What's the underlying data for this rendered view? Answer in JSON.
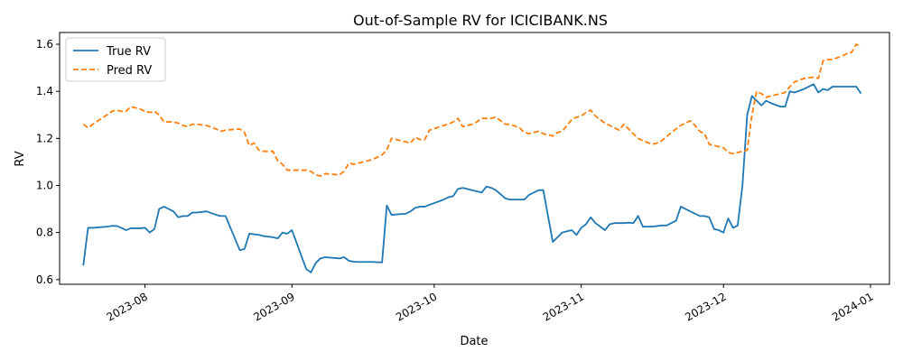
{
  "chart_data": {
    "type": "line",
    "title": "Out-of-Sample RV for ICICIBANK.NS",
    "xlabel": "Date",
    "ylabel": "RV",
    "x_axis_type": "date",
    "xlim": [
      "2023-07-14",
      "2024-01-05"
    ],
    "ylim": [
      0.58,
      1.65
    ],
    "x_ticks": [
      {
        "date": "2023-08-01",
        "label": "2023-08"
      },
      {
        "date": "2023-09-01",
        "label": "2023-09"
      },
      {
        "date": "2023-10-01",
        "label": "2023-10"
      },
      {
        "date": "2023-11-01",
        "label": "2023-11"
      },
      {
        "date": "2023-12-01",
        "label": "2023-12"
      },
      {
        "date": "2024-01-01",
        "label": "2024-01"
      }
    ],
    "y_ticks": [
      0.6,
      0.8,
      1.0,
      1.2,
      1.4,
      1.6
    ],
    "y_tick_labels": [
      "0.6",
      "0.8",
      "1.0",
      "1.2",
      "1.4",
      "1.6"
    ],
    "grid": false,
    "legend_position": "top-left",
    "series": [
      {
        "name": "True RV",
        "color": "#1f77b4",
        "style": "solid",
        "points": [
          [
            "2023-07-19",
            0.66
          ],
          [
            "2023-07-20",
            0.82
          ],
          [
            "2023-07-21",
            0.82
          ],
          [
            "2023-07-24",
            0.825
          ],
          [
            "2023-07-25",
            0.828
          ],
          [
            "2023-07-26",
            0.828
          ],
          [
            "2023-07-27",
            0.82
          ],
          [
            "2023-07-28",
            0.81
          ],
          [
            "2023-07-29",
            0.818
          ],
          [
            "2023-07-31",
            0.818
          ],
          [
            "2023-08-01",
            0.82
          ],
          [
            "2023-08-02",
            0.8
          ],
          [
            "2023-08-03",
            0.815
          ],
          [
            "2023-08-04",
            0.9
          ],
          [
            "2023-08-05",
            0.91
          ],
          [
            "2023-08-07",
            0.89
          ],
          [
            "2023-08-08",
            0.865
          ],
          [
            "2023-08-09",
            0.87
          ],
          [
            "2023-08-10",
            0.87
          ],
          [
            "2023-08-11",
            0.885
          ],
          [
            "2023-08-12",
            0.885
          ],
          [
            "2023-08-14",
            0.89
          ],
          [
            "2023-08-16",
            0.875
          ],
          [
            "2023-08-17",
            0.87
          ],
          [
            "2023-08-18",
            0.87
          ],
          [
            "2023-08-21",
            0.725
          ],
          [
            "2023-08-22",
            0.73
          ],
          [
            "2023-08-23",
            0.795
          ],
          [
            "2023-08-25",
            0.79
          ],
          [
            "2023-08-26",
            0.785
          ],
          [
            "2023-08-28",
            0.78
          ],
          [
            "2023-08-29",
            0.775
          ],
          [
            "2023-08-30",
            0.8
          ],
          [
            "2023-08-31",
            0.795
          ],
          [
            "2023-09-01",
            0.81
          ],
          [
            "2023-09-04",
            0.645
          ],
          [
            "2023-09-05",
            0.63
          ],
          [
            "2023-09-06",
            0.67
          ],
          [
            "2023-09-07",
            0.69
          ],
          [
            "2023-09-08",
            0.695
          ],
          [
            "2023-09-11",
            0.69
          ],
          [
            "2023-09-12",
            0.695
          ],
          [
            "2023-09-13",
            0.68
          ],
          [
            "2023-09-14",
            0.676
          ],
          [
            "2023-09-15",
            0.675
          ],
          [
            "2023-09-18",
            0.675
          ],
          [
            "2023-09-20",
            0.673
          ],
          [
            "2023-09-21",
            0.915
          ],
          [
            "2023-09-22",
            0.875
          ],
          [
            "2023-09-25",
            0.88
          ],
          [
            "2023-09-26",
            0.89
          ],
          [
            "2023-09-27",
            0.905
          ],
          [
            "2023-09-28",
            0.91
          ],
          [
            "2023-09-29",
            0.91
          ],
          [
            "2023-10-03",
            0.94
          ],
          [
            "2023-10-04",
            0.95
          ],
          [
            "2023-10-05",
            0.955
          ],
          [
            "2023-10-06",
            0.985
          ],
          [
            "2023-10-07",
            0.99
          ],
          [
            "2023-10-09",
            0.98
          ],
          [
            "2023-10-10",
            0.975
          ],
          [
            "2023-10-11",
            0.97
          ],
          [
            "2023-10-12",
            0.995
          ],
          [
            "2023-10-13",
            0.99
          ],
          [
            "2023-10-14",
            0.98
          ],
          [
            "2023-10-16",
            0.945
          ],
          [
            "2023-10-17",
            0.94
          ],
          [
            "2023-10-20",
            0.94
          ],
          [
            "2023-10-21",
            0.96
          ],
          [
            "2023-10-23",
            0.98
          ],
          [
            "2023-10-24",
            0.98
          ],
          [
            "2023-10-26",
            0.76
          ],
          [
            "2023-10-27",
            0.78
          ],
          [
            "2023-10-28",
            0.8
          ],
          [
            "2023-10-30",
            0.81
          ],
          [
            "2023-10-31",
            0.79
          ],
          [
            "2023-11-01",
            0.82
          ],
          [
            "2023-11-02",
            0.835
          ],
          [
            "2023-11-03",
            0.865
          ],
          [
            "2023-11-04",
            0.84
          ],
          [
            "2023-11-06",
            0.81
          ],
          [
            "2023-11-07",
            0.835
          ],
          [
            "2023-11-08",
            0.84
          ],
          [
            "2023-11-10",
            0.84
          ],
          [
            "2023-11-11",
            0.842
          ],
          [
            "2023-11-12",
            0.84
          ],
          [
            "2023-11-13",
            0.87
          ],
          [
            "2023-11-14",
            0.825
          ],
          [
            "2023-11-16",
            0.825
          ],
          [
            "2023-11-18",
            0.83
          ],
          [
            "2023-11-19",
            0.83
          ],
          [
            "2023-11-20",
            0.84
          ],
          [
            "2023-11-21",
            0.85
          ],
          [
            "2023-11-22",
            0.91
          ],
          [
            "2023-11-24",
            0.89
          ],
          [
            "2023-11-26",
            0.87
          ],
          [
            "2023-11-27",
            0.87
          ],
          [
            "2023-11-28",
            0.865
          ],
          [
            "2023-11-29",
            0.815
          ],
          [
            "2023-11-30",
            0.81
          ],
          [
            "2023-12-01",
            0.8
          ],
          [
            "2023-12-02",
            0.86
          ],
          [
            "2023-12-03",
            0.82
          ],
          [
            "2023-12-04",
            0.83
          ],
          [
            "2023-12-05",
            1.0
          ],
          [
            "2023-12-06",
            1.3
          ],
          [
            "2023-12-07",
            1.38
          ],
          [
            "2023-12-08",
            1.36
          ],
          [
            "2023-12-09",
            1.34
          ],
          [
            "2023-12-10",
            1.36
          ],
          [
            "2023-12-11",
            1.35
          ],
          [
            "2023-12-13",
            1.335
          ],
          [
            "2023-12-14",
            1.335
          ],
          [
            "2023-12-15",
            1.4
          ],
          [
            "2023-12-16",
            1.395
          ],
          [
            "2023-12-18",
            1.41
          ],
          [
            "2023-12-20",
            1.43
          ],
          [
            "2023-12-21",
            1.395
          ],
          [
            "2023-12-22",
            1.41
          ],
          [
            "2023-12-23",
            1.405
          ],
          [
            "2023-12-24",
            1.42
          ],
          [
            "2023-12-25",
            1.42
          ],
          [
            "2023-12-29",
            1.42
          ],
          [
            "2023-12-30",
            1.39
          ]
        ]
      },
      {
        "name": "Pred RV",
        "color": "#ff7f0e",
        "style": "dashed",
        "points": [
          [
            "2023-07-19",
            1.26
          ],
          [
            "2023-07-20",
            1.245
          ],
          [
            "2023-07-21",
            1.26
          ],
          [
            "2023-07-24",
            1.3
          ],
          [
            "2023-07-25",
            1.315
          ],
          [
            "2023-07-26",
            1.32
          ],
          [
            "2023-07-27",
            1.315
          ],
          [
            "2023-07-28",
            1.315
          ],
          [
            "2023-07-29",
            1.335
          ],
          [
            "2023-07-31",
            1.325
          ],
          [
            "2023-08-01",
            1.315
          ],
          [
            "2023-08-02",
            1.31
          ],
          [
            "2023-08-03",
            1.315
          ],
          [
            "2023-08-04",
            1.3
          ],
          [
            "2023-08-05",
            1.27
          ],
          [
            "2023-08-07",
            1.27
          ],
          [
            "2023-08-08",
            1.265
          ],
          [
            "2023-08-09",
            1.255
          ],
          [
            "2023-08-10",
            1.25
          ],
          [
            "2023-08-11",
            1.26
          ],
          [
            "2023-08-12",
            1.26
          ],
          [
            "2023-08-14",
            1.255
          ],
          [
            "2023-08-16",
            1.24
          ],
          [
            "2023-08-17",
            1.23
          ],
          [
            "2023-08-18",
            1.235
          ],
          [
            "2023-08-21",
            1.24
          ],
          [
            "2023-08-22",
            1.225
          ],
          [
            "2023-08-23",
            1.17
          ],
          [
            "2023-08-24",
            1.18
          ],
          [
            "2023-08-25",
            1.15
          ],
          [
            "2023-08-26",
            1.145
          ],
          [
            "2023-08-28",
            1.145
          ],
          [
            "2023-08-29",
            1.105
          ],
          [
            "2023-08-30",
            1.09
          ],
          [
            "2023-08-31",
            1.065
          ],
          [
            "2023-09-01",
            1.065
          ],
          [
            "2023-09-04",
            1.065
          ],
          [
            "2023-09-05",
            1.06
          ],
          [
            "2023-09-06",
            1.045
          ],
          [
            "2023-09-07",
            1.04
          ],
          [
            "2023-09-08",
            1.05
          ],
          [
            "2023-09-11",
            1.045
          ],
          [
            "2023-09-12",
            1.06
          ],
          [
            "2023-09-13",
            1.095
          ],
          [
            "2023-09-14",
            1.09
          ],
          [
            "2023-09-15",
            1.095
          ],
          [
            "2023-09-18",
            1.11
          ],
          [
            "2023-09-20",
            1.13
          ],
          [
            "2023-09-21",
            1.15
          ],
          [
            "2023-09-22",
            1.2
          ],
          [
            "2023-09-25",
            1.185
          ],
          [
            "2023-09-26",
            1.18
          ],
          [
            "2023-09-27",
            1.205
          ],
          [
            "2023-09-28",
            1.195
          ],
          [
            "2023-09-29",
            1.195
          ],
          [
            "2023-09-30",
            1.235
          ],
          [
            "2023-10-03",
            1.255
          ],
          [
            "2023-10-04",
            1.26
          ],
          [
            "2023-10-05",
            1.27
          ],
          [
            "2023-10-06",
            1.285
          ],
          [
            "2023-10-07",
            1.25
          ],
          [
            "2023-10-09",
            1.26
          ],
          [
            "2023-10-10",
            1.27
          ],
          [
            "2023-10-11",
            1.285
          ],
          [
            "2023-10-13",
            1.285
          ],
          [
            "2023-10-14",
            1.29
          ],
          [
            "2023-10-16",
            1.26
          ],
          [
            "2023-10-17",
            1.26
          ],
          [
            "2023-10-19",
            1.245
          ],
          [
            "2023-10-20",
            1.225
          ],
          [
            "2023-10-21",
            1.22
          ],
          [
            "2023-10-23",
            1.23
          ],
          [
            "2023-10-24",
            1.22
          ],
          [
            "2023-10-25",
            1.215
          ],
          [
            "2023-10-26",
            1.21
          ],
          [
            "2023-10-27",
            1.225
          ],
          [
            "2023-10-28",
            1.23
          ],
          [
            "2023-10-30",
            1.28
          ],
          [
            "2023-10-31",
            1.29
          ],
          [
            "2023-11-01",
            1.295
          ],
          [
            "2023-11-02",
            1.31
          ],
          [
            "2023-11-03",
            1.32
          ],
          [
            "2023-11-04",
            1.295
          ],
          [
            "2023-11-06",
            1.265
          ],
          [
            "2023-11-07",
            1.255
          ],
          [
            "2023-11-08",
            1.245
          ],
          [
            "2023-11-09",
            1.235
          ],
          [
            "2023-11-10",
            1.26
          ],
          [
            "2023-11-11",
            1.24
          ],
          [
            "2023-11-13",
            1.2
          ],
          [
            "2023-11-14",
            1.19
          ],
          [
            "2023-11-16",
            1.175
          ],
          [
            "2023-11-17",
            1.18
          ],
          [
            "2023-11-18",
            1.19
          ],
          [
            "2023-11-20",
            1.225
          ],
          [
            "2023-11-21",
            1.24
          ],
          [
            "2023-11-22",
            1.255
          ],
          [
            "2023-11-24",
            1.275
          ],
          [
            "2023-11-25",
            1.255
          ],
          [
            "2023-11-26",
            1.23
          ],
          [
            "2023-11-27",
            1.22
          ],
          [
            "2023-11-28",
            1.175
          ],
          [
            "2023-11-29",
            1.17
          ],
          [
            "2023-11-30",
            1.165
          ],
          [
            "2023-12-01",
            1.16
          ],
          [
            "2023-12-02",
            1.14
          ],
          [
            "2023-12-03",
            1.135
          ],
          [
            "2023-12-04",
            1.14
          ],
          [
            "2023-12-05",
            1.145
          ],
          [
            "2023-12-06",
            1.15
          ],
          [
            "2023-12-07",
            1.3
          ],
          [
            "2023-12-08",
            1.4
          ],
          [
            "2023-12-09",
            1.39
          ],
          [
            "2023-12-10",
            1.375
          ],
          [
            "2023-12-11",
            1.38
          ],
          [
            "2023-12-13",
            1.39
          ],
          [
            "2023-12-14",
            1.395
          ],
          [
            "2023-12-15",
            1.42
          ],
          [
            "2023-12-16",
            1.44
          ],
          [
            "2023-12-18",
            1.455
          ],
          [
            "2023-12-20",
            1.46
          ],
          [
            "2023-12-21",
            1.455
          ],
          [
            "2023-12-22",
            1.53
          ],
          [
            "2023-12-23",
            1.535
          ],
          [
            "2023-12-24",
            1.535
          ],
          [
            "2023-12-26",
            1.55
          ],
          [
            "2023-12-27",
            1.56
          ],
          [
            "2023-12-28",
            1.565
          ],
          [
            "2023-12-29",
            1.6
          ],
          [
            "2023-12-30",
            1.59
          ]
        ]
      }
    ]
  }
}
